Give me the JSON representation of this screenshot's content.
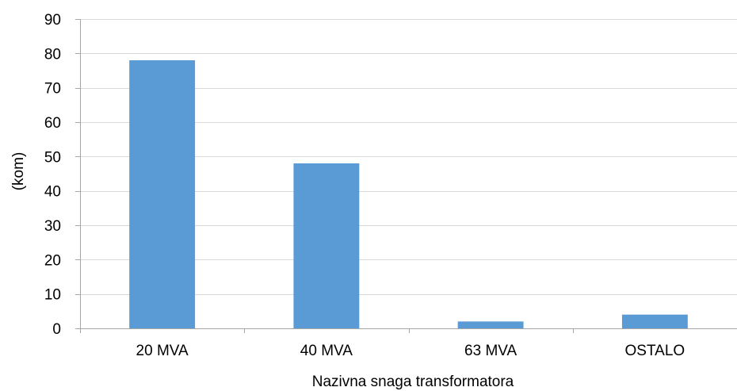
{
  "chart_data": {
    "type": "bar",
    "title": "",
    "categories": [
      "20 MVA",
      "40 MVA",
      "63 MVA",
      "OSTALO"
    ],
    "values": [
      78,
      48,
      2,
      4
    ],
    "xlabel": "Nazivna snaga transformatora",
    "ylabel": "(kom)",
    "ylim": [
      0,
      90
    ],
    "yticks": [
      0,
      10,
      20,
      30,
      40,
      50,
      60,
      70,
      80,
      90
    ],
    "grid": true,
    "legend": "none",
    "bar_color": "#5b9bd5",
    "grid_color": "#d9d9d9",
    "axis_color": "#a6a6a6"
  }
}
